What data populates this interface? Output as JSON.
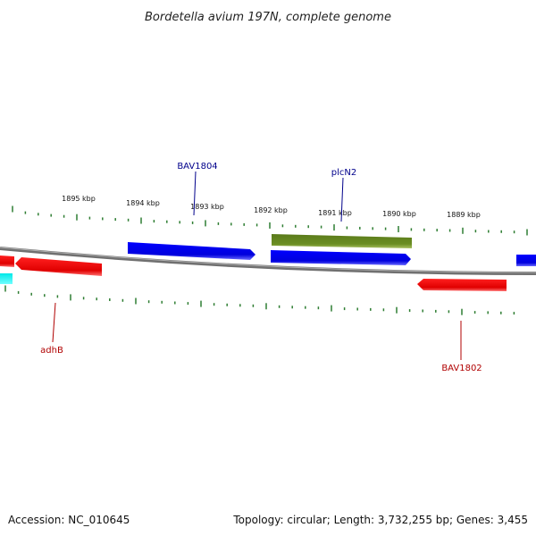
{
  "title": "Bordetella avium 197N, complete genome",
  "accession_text": "Accession: NC_010645",
  "summary_text": "Topology: circular; Length: 3,732,255 bp; Genes: 3,455",
  "scale_labels": [
    "1895 kbp",
    "1894 kbp",
    "1893 kbp",
    "1892 kbp",
    "1891 kbp",
    "1890 kbp",
    "1889 kbp"
  ],
  "gene_labels": {
    "bav1804": "BAV1804",
    "plcn2": "plcN2",
    "adhb": "adhB",
    "bav1802": "BAV1802"
  },
  "colors": {
    "forward_gene": "#0000e0",
    "reverse_gene": "#e00000",
    "rna_gene": "#6b8e23",
    "other_feature": "#00e0e0",
    "backbone": "#808080",
    "ticks": "#2e7d32",
    "forward_label": "#00008b",
    "reverse_label": "#b00000"
  }
}
